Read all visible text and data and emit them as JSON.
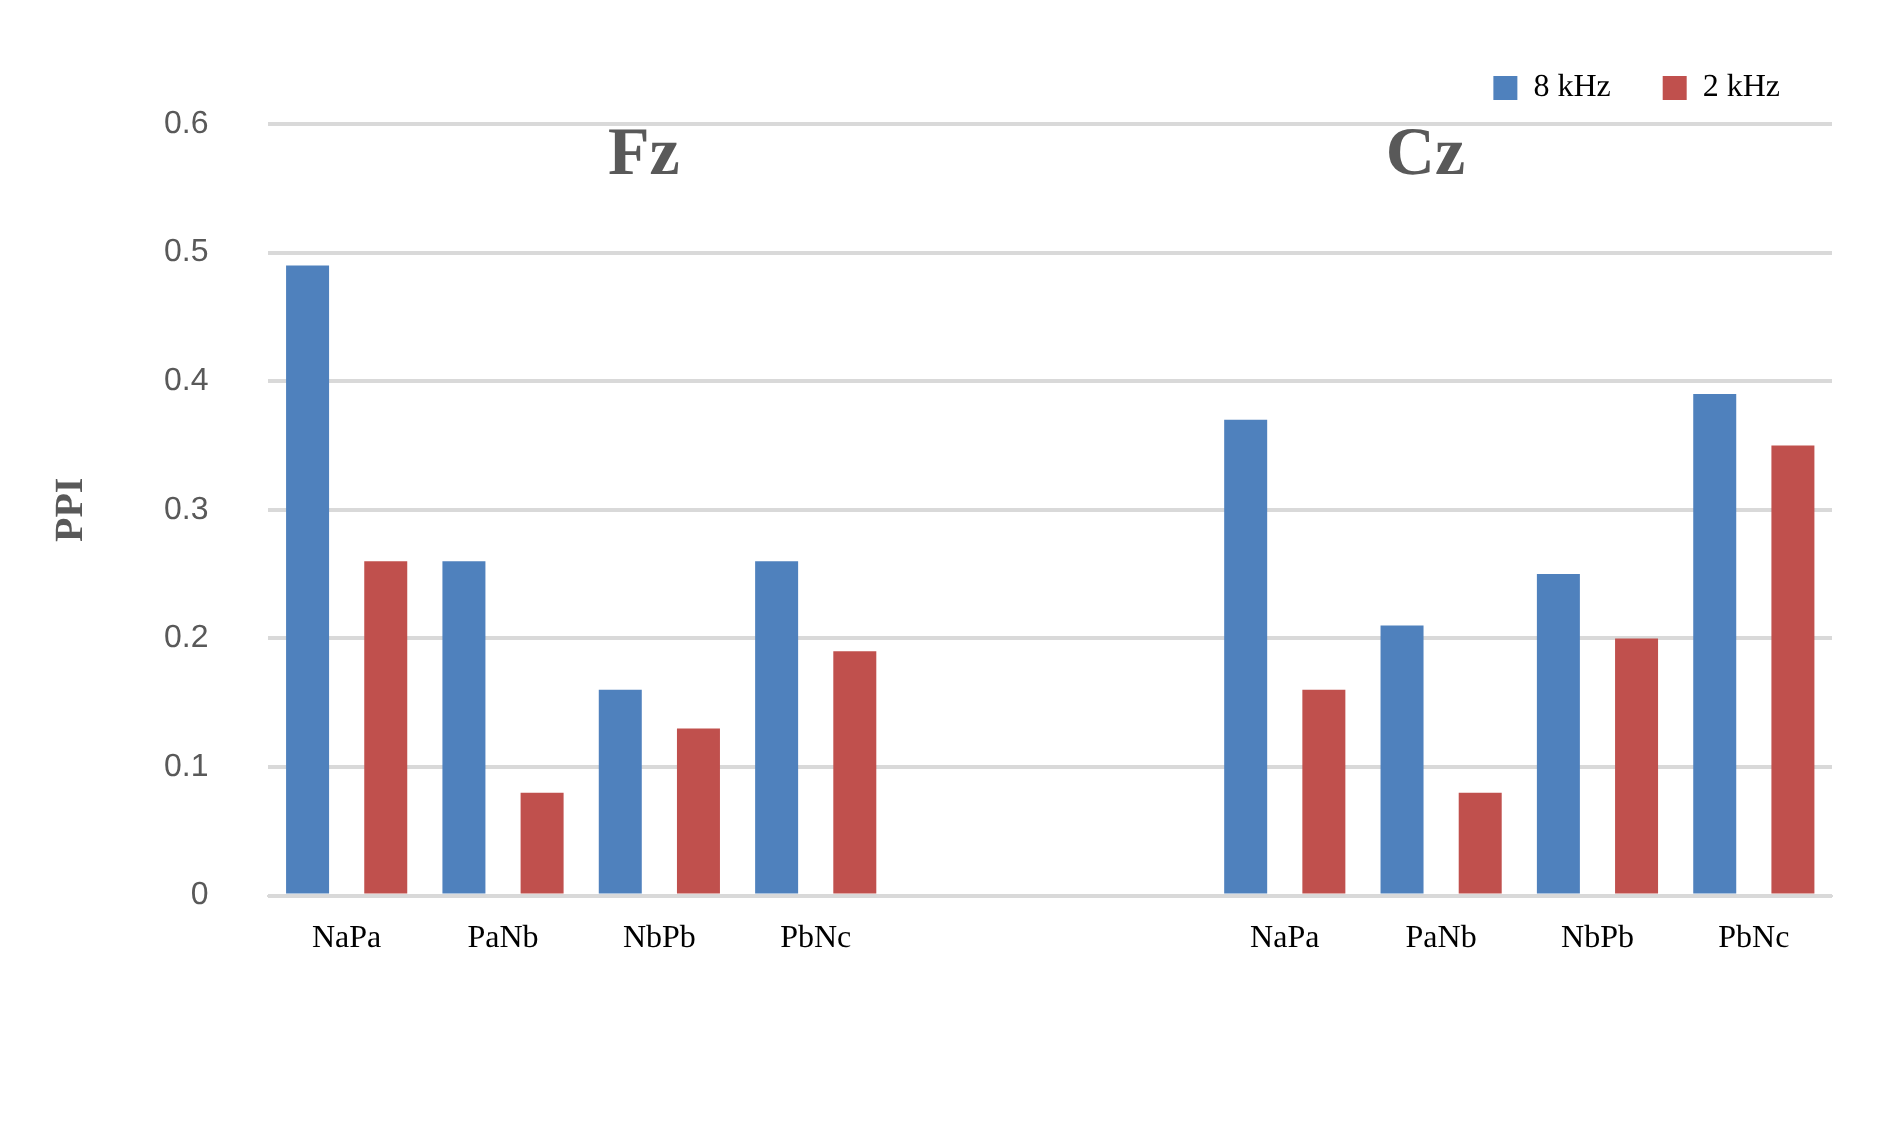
{
  "chart_data": {
    "type": "bar",
    "ylabel": "PPI",
    "annotations": [
      "Fz",
      "Cz"
    ],
    "categories": [
      "NaPa",
      "PaNb",
      "NbPb",
      "PbNc",
      null,
      null,
      "NaPa",
      "PaNb",
      "NbPb",
      "PbNc"
    ],
    "series": [
      {
        "name": "8 kHz",
        "color": "#4f81bd",
        "values": [
          0.49,
          0.26,
          0.16,
          0.26,
          null,
          null,
          0.37,
          0.21,
          0.25,
          0.39
        ]
      },
      {
        "name": "2 kHz",
        "color": "#c0504d",
        "values": [
          0.26,
          0.08,
          0.13,
          0.19,
          null,
          null,
          0.16,
          0.08,
          0.2,
          0.35
        ]
      }
    ],
    "ylim": [
      0,
      0.6
    ],
    "yticks": [
      0,
      0.1,
      0.2,
      0.3,
      0.4,
      0.5,
      0.6
    ],
    "grid": "y",
    "legend": "top right"
  }
}
